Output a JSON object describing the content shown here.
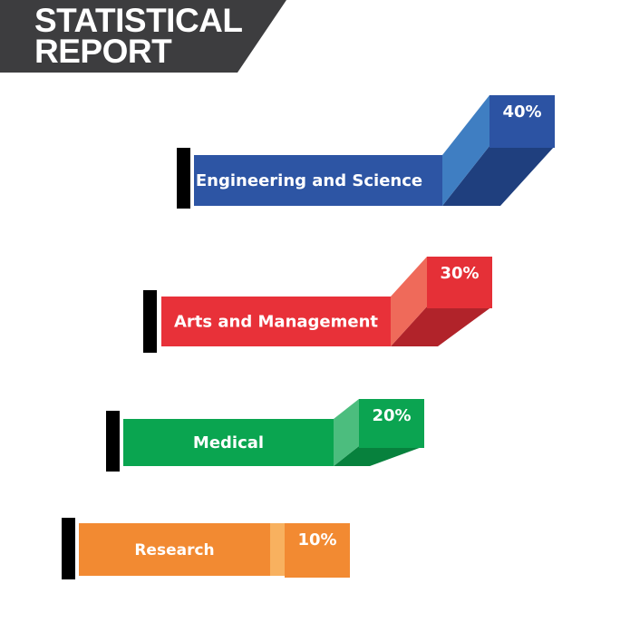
{
  "header": {
    "title_line1": "STATISTICAL",
    "title_line2": "REPORT",
    "banner_color": "#3d3d3f"
  },
  "chart_data": {
    "type": "bar",
    "title": "STATISTICAL REPORT",
    "categories": [
      "Engineering and Science",
      "Arts and Management",
      "Medical",
      "Research"
    ],
    "values": [
      40,
      30,
      20,
      10
    ],
    "value_labels": [
      "40%",
      "30%",
      "20%",
      "10%"
    ],
    "unit": "%",
    "colors": [
      {
        "front": "#2d55a4",
        "bevel": "#3f7ec2",
        "box": "#2c53a3",
        "bottom": "#1f3f7e"
      },
      {
        "front": "#e83139",
        "bevel": "#ef6a5a",
        "box": "#e53037",
        "bottom": "#b1232a"
      },
      {
        "front": "#0aa550",
        "bevel": "#4cbd7e",
        "box": "#0ba451",
        "bottom": "#07813d"
      },
      {
        "front": "#f28a32",
        "bevel": "#f8b15f",
        "box": "#f28a32",
        "bottom": "#c96c1f"
      }
    ],
    "marker_color": "#000000",
    "legend": "none",
    "grid": false
  }
}
